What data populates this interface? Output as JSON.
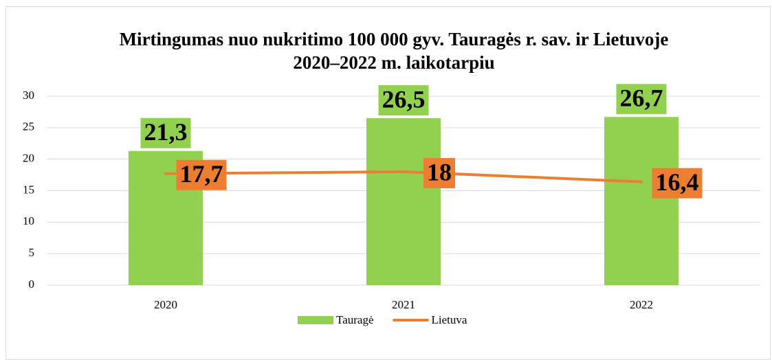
{
  "chart_data": {
    "type": "combo",
    "title": "Mirtingumas nuo nukritimo 100 000 gyv. Tauragės r. sav. ir Lietuvoje 2020–2022 m. laikotarpiu",
    "categories": [
      "2020",
      "2021",
      "2022"
    ],
    "series": [
      {
        "name": "Tauragė",
        "type": "bar",
        "color": "#92d050",
        "values": [
          21.3,
          26.5,
          26.7
        ],
        "value_labels": [
          "21,3",
          "26,5",
          "26,7"
        ]
      },
      {
        "name": "Lietuva",
        "type": "line",
        "color": "#ed7d31",
        "values": [
          17.7,
          18,
          16.4
        ],
        "value_labels": [
          "17,7",
          "18",
          "16,4"
        ]
      }
    ],
    "ylim": [
      0,
      30
    ],
    "yticks": [
      0,
      5,
      10,
      15,
      20,
      25,
      30
    ],
    "grid": true,
    "legend": "bottom"
  }
}
